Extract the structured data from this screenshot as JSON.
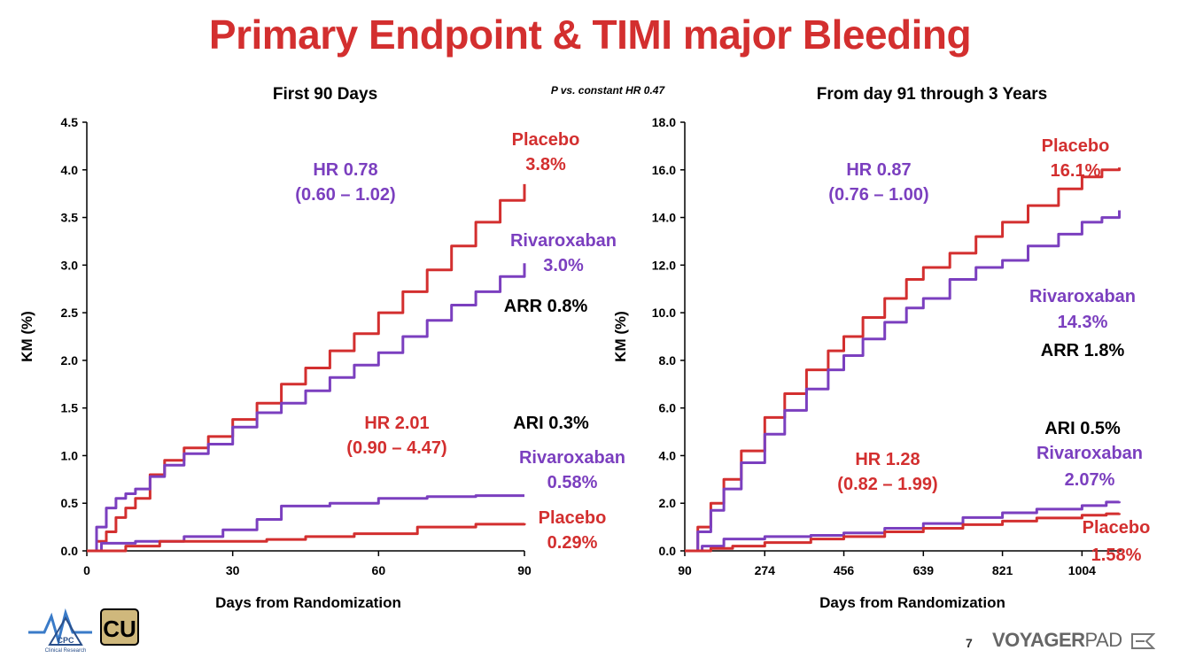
{
  "title": "Primary Endpoint & TIMI major Bleeding",
  "page_number": "7",
  "brand": {
    "bold": "VOYAGER",
    "light": "PAD"
  },
  "logos": {
    "cpc": "CPC",
    "cpc_sub": "Clinical Research",
    "cu": "CU"
  },
  "colors": {
    "placebo": "#d32f2f",
    "rivaroxaban": "#7b3fbf",
    "black": "#000000",
    "title": "#d32f2f"
  },
  "chart_data": [
    {
      "type": "line",
      "title": "First 90 Days",
      "note": "P vs. constant HR 0.47",
      "xlabel": "Days from Randomization",
      "ylabel": "KM (%)",
      "xlim": [
        0,
        90
      ],
      "ylim": [
        0,
        4.5
      ],
      "xticks": [
        0,
        30,
        60,
        90
      ],
      "xtick_labels": [
        "0",
        "30",
        "60",
        "90"
      ],
      "yticks": [
        0,
        0.5,
        1.0,
        1.5,
        2.0,
        2.5,
        3.0,
        3.5,
        4.0,
        4.5
      ],
      "ytick_labels": [
        "0.0",
        "0.5",
        "1.0",
        "1.5",
        "2.0",
        "2.5",
        "3.0",
        "3.5",
        "4.0",
        "4.5"
      ],
      "series": [
        {
          "name": "Placebo primary",
          "color": "placebo",
          "x": [
            0,
            2,
            4,
            6,
            8,
            10,
            13,
            16,
            20,
            25,
            30,
            35,
            40,
            45,
            50,
            55,
            60,
            65,
            70,
            75,
            80,
            85,
            90
          ],
          "y": [
            0,
            0.1,
            0.2,
            0.35,
            0.45,
            0.55,
            0.8,
            0.95,
            1.08,
            1.2,
            1.38,
            1.55,
            1.75,
            1.92,
            2.1,
            2.28,
            2.5,
            2.72,
            2.95,
            3.2,
            3.45,
            3.68,
            3.85
          ]
        },
        {
          "name": "Rivaroxaban primary",
          "color": "rivaroxaban",
          "x": [
            0,
            2,
            4,
            6,
            8,
            10,
            13,
            16,
            20,
            25,
            30,
            35,
            40,
            45,
            50,
            55,
            60,
            65,
            70,
            75,
            80,
            85,
            90
          ],
          "y": [
            0,
            0.25,
            0.45,
            0.55,
            0.6,
            0.65,
            0.78,
            0.9,
            1.02,
            1.12,
            1.3,
            1.45,
            1.55,
            1.68,
            1.82,
            1.95,
            2.08,
            2.25,
            2.42,
            2.58,
            2.72,
            2.88,
            3.02
          ]
        },
        {
          "name": "Rivaroxaban bleeding",
          "color": "rivaroxaban",
          "x": [
            0,
            3,
            10,
            20,
            28,
            35,
            40,
            50,
            60,
            70,
            80,
            90
          ],
          "y": [
            0,
            0.08,
            0.1,
            0.15,
            0.22,
            0.33,
            0.47,
            0.5,
            0.55,
            0.57,
            0.58,
            0.58
          ]
        },
        {
          "name": "Placebo bleeding",
          "color": "placebo",
          "x": [
            0,
            8,
            15,
            30,
            37,
            45,
            55,
            68,
            80,
            90
          ],
          "y": [
            0,
            0.05,
            0.1,
            0.1,
            0.12,
            0.15,
            0.18,
            0.25,
            0.28,
            0.29
          ]
        }
      ],
      "annotations": [
        {
          "text": "Placebo",
          "color": "placebo"
        },
        {
          "text": "3.8%",
          "color": "placebo"
        },
        {
          "text": "HR 0.78",
          "color": "rivaroxaban"
        },
        {
          "text": "(0.60 – 1.02)",
          "color": "rivaroxaban"
        },
        {
          "text": "Rivaroxaban",
          "color": "rivaroxaban"
        },
        {
          "text": "3.0%",
          "color": "rivaroxaban"
        },
        {
          "text": "ARR 0.8%",
          "color": "black"
        },
        {
          "text": "HR 2.01",
          "color": "placebo"
        },
        {
          "text": "(0.90 – 4.47)",
          "color": "placebo"
        },
        {
          "text": "ARI 0.3%",
          "color": "black"
        },
        {
          "text": "Rivaroxaban",
          "color": "rivaroxaban"
        },
        {
          "text": "0.58%",
          "color": "rivaroxaban"
        },
        {
          "text": "Placebo",
          "color": "placebo"
        },
        {
          "text": "0.29%",
          "color": "placebo"
        }
      ]
    },
    {
      "type": "line",
      "title": "From day 91 through 3 Years",
      "xlabel": "Days from Randomization",
      "ylabel": "KM (%)",
      "xlim": [
        90,
        1095
      ],
      "ylim": [
        0,
        18
      ],
      "xticks": [
        90,
        274,
        456,
        639,
        821,
        1004
      ],
      "xtick_labels": [
        "90",
        "274",
        "456",
        "639",
        "821",
        "1004"
      ],
      "yticks": [
        0,
        2,
        4,
        6,
        8,
        10,
        12,
        14,
        16,
        18
      ],
      "ytick_labels": [
        "0.0",
        "2.0",
        "4.0",
        "6.0",
        "8.0",
        "10.0",
        "12.0",
        "14.0",
        "16.0",
        "18.0"
      ],
      "series": [
        {
          "name": "Placebo primary",
          "color": "placebo",
          "x": [
            90,
            120,
            150,
            180,
            220,
            274,
            320,
            370,
            420,
            456,
            500,
            550,
            600,
            639,
            700,
            760,
            821,
            880,
            950,
            1004,
            1050,
            1090
          ],
          "y": [
            0,
            1.0,
            2.0,
            3.0,
            4.2,
            5.6,
            6.6,
            7.6,
            8.4,
            9.0,
            9.8,
            10.6,
            11.4,
            11.9,
            12.5,
            13.2,
            13.8,
            14.5,
            15.2,
            15.7,
            16.0,
            16.1
          ]
        },
        {
          "name": "Rivaroxaban primary",
          "color": "rivaroxaban",
          "x": [
            90,
            120,
            150,
            180,
            220,
            274,
            320,
            370,
            420,
            456,
            500,
            550,
            600,
            639,
            700,
            760,
            821,
            880,
            950,
            1004,
            1050,
            1090
          ],
          "y": [
            0,
            0.8,
            1.7,
            2.6,
            3.7,
            4.9,
            5.9,
            6.8,
            7.6,
            8.2,
            8.9,
            9.6,
            10.2,
            10.6,
            11.4,
            11.9,
            12.2,
            12.8,
            13.3,
            13.8,
            14.0,
            14.3
          ]
        },
        {
          "name": "Rivaroxaban bleeding",
          "color": "rivaroxaban",
          "x": [
            90,
            130,
            180,
            274,
            380,
            456,
            550,
            639,
            730,
            821,
            900,
            1004,
            1060,
            1090
          ],
          "y": [
            0,
            0.2,
            0.5,
            0.6,
            0.65,
            0.75,
            0.95,
            1.15,
            1.4,
            1.6,
            1.75,
            1.9,
            2.05,
            2.07
          ]
        },
        {
          "name": "Placebo bleeding",
          "color": "placebo",
          "x": [
            90,
            150,
            200,
            274,
            380,
            456,
            550,
            639,
            730,
            821,
            900,
            1004,
            1060,
            1090
          ],
          "y": [
            0,
            0.1,
            0.2,
            0.35,
            0.5,
            0.6,
            0.8,
            0.95,
            1.1,
            1.25,
            1.38,
            1.5,
            1.56,
            1.58
          ]
        }
      ],
      "annotations": [
        {
          "text": "Placebo",
          "color": "placebo"
        },
        {
          "text": "16.1%",
          "color": "placebo"
        },
        {
          "text": "HR 0.87",
          "color": "rivaroxaban"
        },
        {
          "text": "(0.76 – 1.00)",
          "color": "rivaroxaban"
        },
        {
          "text": "Rivaroxaban",
          "color": "rivaroxaban"
        },
        {
          "text": "14.3%",
          "color": "rivaroxaban"
        },
        {
          "text": "ARR 1.8%",
          "color": "black"
        },
        {
          "text": "ARI 0.5%",
          "color": "black"
        },
        {
          "text": "Rivaroxaban",
          "color": "rivaroxaban"
        },
        {
          "text": "2.07%",
          "color": "rivaroxaban"
        },
        {
          "text": "HR 1.28",
          "color": "placebo"
        },
        {
          "text": "(0.82 – 1.99)",
          "color": "placebo"
        },
        {
          "text": "Placebo",
          "color": "placebo"
        },
        {
          "text": "1.58%",
          "color": "placebo"
        }
      ]
    }
  ]
}
